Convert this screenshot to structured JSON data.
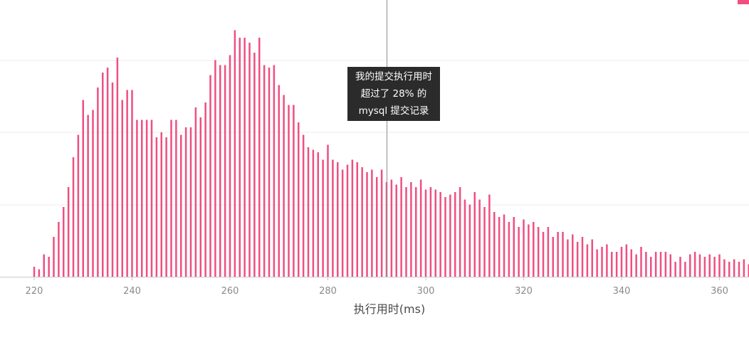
{
  "colors": {
    "bar": "#ef4f82",
    "grid": "#eeeeee",
    "axis": "#c8c8c8",
    "crosshair": "#8e8e8e",
    "tooltip_bg": "#2b2b2b",
    "tooltip_text": "#ffffff"
  },
  "tooltip": {
    "line1": "我的提交执行用时",
    "line2": "超过了 28% 的",
    "line3": "mysql 提交记录"
  },
  "chart_data": {
    "type": "bar",
    "title": "",
    "xlabel": "执行用时(ms)",
    "ylabel": "",
    "xlim": [
      219,
      366
    ],
    "ylim": [
      0,
      100
    ],
    "x_ticks": [
      220,
      240,
      260,
      280,
      300,
      320,
      340,
      360
    ],
    "grid": true,
    "crosshair_x": 292,
    "x": [
      220,
      221,
      222,
      223,
      224,
      225,
      226,
      227,
      228,
      229,
      230,
      231,
      232,
      233,
      234,
      235,
      236,
      237,
      238,
      239,
      240,
      241,
      242,
      243,
      244,
      245,
      246,
      247,
      248,
      249,
      250,
      251,
      252,
      253,
      254,
      255,
      256,
      257,
      258,
      259,
      260,
      261,
      262,
      263,
      264,
      265,
      266,
      267,
      268,
      269,
      270,
      271,
      272,
      273,
      274,
      275,
      276,
      277,
      278,
      279,
      280,
      281,
      282,
      283,
      284,
      285,
      286,
      287,
      288,
      289,
      290,
      291,
      292,
      293,
      294,
      295,
      296,
      297,
      298,
      299,
      300,
      301,
      302,
      303,
      304,
      305,
      306,
      307,
      308,
      309,
      310,
      311,
      312,
      313,
      314,
      315,
      316,
      317,
      318,
      319,
      320,
      321,
      322,
      323,
      324,
      325,
      326,
      327,
      328,
      329,
      330,
      331,
      332,
      333,
      334,
      335,
      336,
      337,
      338,
      339,
      340,
      341,
      342,
      343,
      344,
      345,
      346,
      347,
      348,
      349,
      350,
      351,
      352,
      353,
      354,
      355,
      356,
      357,
      358,
      359,
      360,
      361,
      362,
      363,
      364,
      365,
      366
    ],
    "values": [
      4,
      3,
      9,
      8,
      16,
      22,
      28,
      36,
      48,
      57,
      71,
      65,
      67,
      76,
      82,
      84,
      78,
      88,
      71,
      75,
      75,
      63,
      63,
      63,
      63,
      56,
      58,
      56,
      63,
      63,
      57,
      60,
      60,
      68,
      64,
      70,
      81,
      87,
      85,
      85,
      89,
      99,
      96,
      96,
      94,
      90,
      96,
      85,
      84,
      85,
      77,
      73,
      69,
      69,
      62,
      57,
      52,
      51,
      50,
      47,
      53,
      47,
      46,
      43,
      45,
      47,
      46,
      44,
      42,
      43,
      40,
      43,
      38,
      39,
      37,
      40,
      36,
      38,
      36,
      39,
      35,
      36,
      35,
      34,
      32,
      33,
      34,
      36,
      31,
      29,
      34,
      31,
      28,
      33,
      26,
      24,
      25,
      22,
      24,
      20,
      23,
      21,
      22,
      20,
      18,
      20,
      16,
      18,
      18,
      15,
      17,
      14,
      16,
      13,
      15,
      11,
      12,
      13,
      10,
      10,
      12,
      13,
      11,
      9,
      12,
      10,
      8,
      10,
      10,
      10,
      9,
      6,
      8,
      6,
      9,
      10,
      9,
      8,
      9,
      8,
      9,
      7,
      6,
      7,
      6,
      7,
      5
    ]
  }
}
